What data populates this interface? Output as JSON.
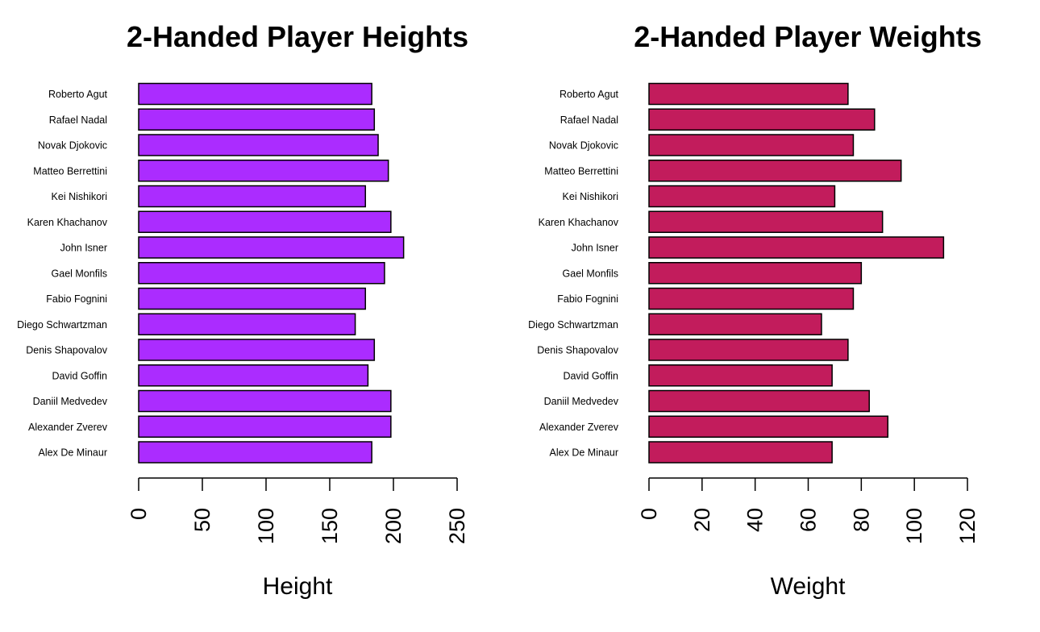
{
  "chart_data": [
    {
      "type": "bar",
      "orientation": "horizontal",
      "title": "2-Handed Player Heights",
      "xlabel": "Height",
      "ylabel": "",
      "xlim": [
        0,
        250
      ],
      "ticks": [
        0,
        50,
        100,
        150,
        200,
        250
      ],
      "bar_color": "#ab2cff",
      "categories": [
        "Roberto Agut",
        "Rafael Nadal",
        "Novak Djokovic",
        "Matteo Berrettini",
        "Kei Nishikori",
        "Karen Khachanov",
        "John Isner",
        "Gael Monfils",
        "Fabio Fognini",
        "Diego Schwartzman",
        "Denis Shapovalov",
        "David Goffin",
        "Daniil Medvedev",
        "Alexander Zverev",
        "Alex De Minaur"
      ],
      "values": [
        183,
        185,
        188,
        196,
        178,
        198,
        208,
        193,
        178,
        170,
        185,
        180,
        198,
        198,
        183
      ]
    },
    {
      "type": "bar",
      "orientation": "horizontal",
      "title": "2-Handed Player Weights",
      "xlabel": "Weight",
      "ylabel": "",
      "xlim": [
        0,
        120
      ],
      "ticks": [
        0,
        20,
        40,
        60,
        80,
        100,
        120
      ],
      "bar_color": "#c21c5c",
      "categories": [
        "Roberto Agut",
        "Rafael Nadal",
        "Novak Djokovic",
        "Matteo Berrettini",
        "Kei Nishikori",
        "Karen Khachanov",
        "John Isner",
        "Gael Monfils",
        "Fabio Fognini",
        "Diego Schwartzman",
        "Denis Shapovalov",
        "David Goffin",
        "Daniil Medvedev",
        "Alexander Zverev",
        "Alex De Minaur"
      ],
      "values": [
        75,
        85,
        77,
        95,
        70,
        88,
        111,
        80,
        77,
        65,
        75,
        69,
        83,
        90,
        69
      ]
    }
  ]
}
